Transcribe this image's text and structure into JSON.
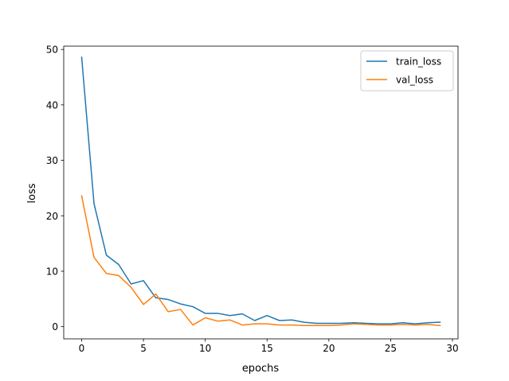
{
  "chart_data": {
    "type": "line",
    "title": "",
    "xlabel": "epochs",
    "ylabel": "loss",
    "xlim": [
      -1.45,
      30.45
    ],
    "ylim": [
      -2.2,
      50.6
    ],
    "xticks": [
      0,
      5,
      10,
      15,
      20,
      25,
      30
    ],
    "yticks": [
      0,
      10,
      20,
      30,
      40,
      50
    ],
    "grid": false,
    "legend_position": "upper right",
    "x": [
      0,
      1,
      2,
      3,
      4,
      5,
      6,
      7,
      8,
      9,
      10,
      11,
      12,
      13,
      14,
      15,
      16,
      17,
      18,
      19,
      20,
      21,
      22,
      23,
      24,
      25,
      26,
      27,
      28,
      29
    ],
    "series": [
      {
        "name": "train_loss",
        "color": "#1f77b4",
        "values": [
          48.6,
          22.2,
          12.9,
          11.2,
          7.7,
          8.3,
          5.2,
          4.9,
          4.1,
          3.6,
          2.4,
          2.4,
          2.0,
          2.3,
          1.1,
          2.0,
          1.1,
          1.2,
          0.8,
          0.6,
          0.6,
          0.6,
          0.7,
          0.6,
          0.5,
          0.5,
          0.7,
          0.5,
          0.7,
          0.8
        ]
      },
      {
        "name": "val_loss",
        "color": "#ff7f0e",
        "values": [
          23.6,
          12.5,
          9.6,
          9.2,
          7.1,
          4.0,
          5.9,
          2.7,
          3.1,
          0.3,
          1.6,
          1.0,
          1.2,
          0.3,
          0.5,
          0.5,
          0.3,
          0.3,
          0.2,
          0.2,
          0.2,
          0.3,
          0.5,
          0.4,
          0.3,
          0.3,
          0.4,
          0.3,
          0.4,
          0.2
        ]
      }
    ]
  }
}
